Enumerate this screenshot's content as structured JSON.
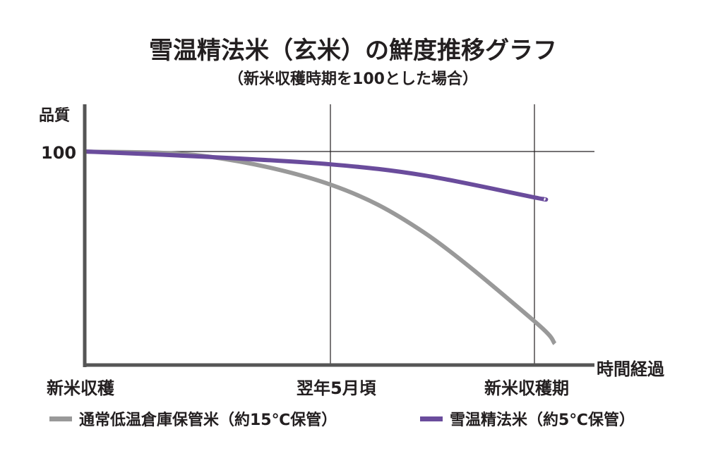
{
  "chart_data": {
    "type": "line",
    "title": "雪温精法米（玄米）の鮮度推移グラフ",
    "subtitle": "（新米収穫時期を100とした場合）",
    "ylabel": "品質",
    "xlabel": "時間経過",
    "y_ticks": [
      "100"
    ],
    "x_ticks": [
      "新米収穫",
      "翌年5月頃",
      "新米収穫期"
    ],
    "ylim": [
      0,
      100
    ],
    "grid": "lines at 100, 翌年5月頃, 新米収穫期",
    "legend": "bottom",
    "series": [
      {
        "name": "通常低温倉庫保管米（約15℃保管）",
        "color": "#999999",
        "points": [
          [
            0,
            100
          ],
          [
            0.5,
            97.7
          ],
          [
            1,
            84.5
          ],
          [
            1.46,
            62
          ],
          [
            2,
            20.5
          ],
          [
            2.1,
            10
          ]
        ]
      },
      {
        "name": "雪温精法米（約5℃保管）",
        "color": "#6a4c9c",
        "points": [
          [
            0,
            100
          ],
          [
            0.5,
            97.5
          ],
          [
            1,
            94
          ],
          [
            1.46,
            88.8
          ],
          [
            2,
            78.5
          ],
          [
            2.045,
            77.8
          ]
        ]
      }
    ]
  }
}
